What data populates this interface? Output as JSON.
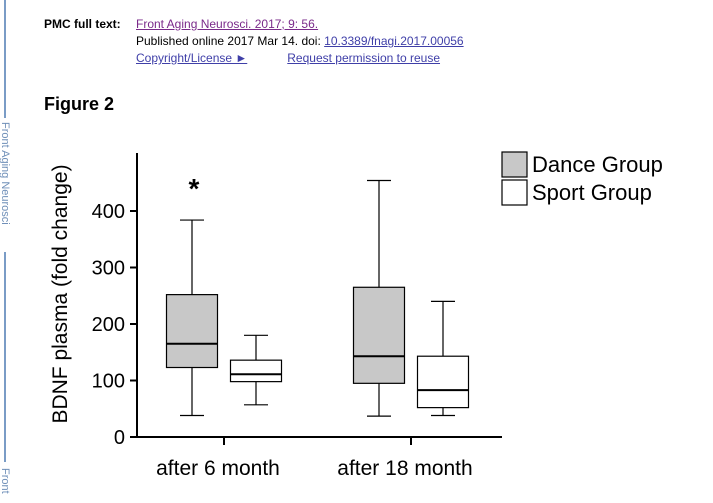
{
  "side": {
    "journal_tab": "Front Aging Neurosci",
    "journal_tab_short": "Front"
  },
  "citation": {
    "pmc_label": "PMC full text:",
    "journal_link": "Front Aging Neurosci. 2017; 9: 56.",
    "published_text": "Published online 2017 Mar 14. doi:",
    "doi_link": "10.3389/fnagi.2017.00056",
    "copyright_link": "Copyright/License ►",
    "permission_link": "Request permission to reuse"
  },
  "figure": {
    "title": "Figure 2"
  },
  "colors": {
    "dance_fill": "#c8c8c8",
    "sport_fill": "#ffffff",
    "link": "#3f3fa8",
    "visited_link": "#7a2a8a",
    "rail": "#7a9cc6"
  },
  "chart_data": {
    "type": "box",
    "title": "",
    "xlabel": "",
    "ylabel": "BDNF plasma (fold change)",
    "ylim": [
      0,
      500
    ],
    "yticks": [
      0,
      100,
      200,
      300,
      400
    ],
    "categories": [
      "after 6 month",
      "after 18 month"
    ],
    "legend_position": "top-right",
    "series": [
      {
        "name": "Dance Group",
        "fill": "#c8c8c8",
        "boxes": [
          {
            "min": 38,
            "q1": 123,
            "median": 165,
            "q3": 252,
            "max": 384
          },
          {
            "min": 37,
            "q1": 95,
            "median": 143,
            "q3": 265,
            "max": 454
          }
        ]
      },
      {
        "name": "Sport Group",
        "fill": "#ffffff",
        "boxes": [
          {
            "min": 57,
            "q1": 98,
            "median": 111,
            "q3": 136,
            "max": 180
          },
          {
            "min": 38,
            "q1": 52,
            "median": 83,
            "q3": 143,
            "max": 240
          }
        ]
      }
    ],
    "annotations": [
      {
        "text": "*",
        "category": "after 6 month",
        "series": "Dance Group",
        "value": 455
      }
    ]
  }
}
